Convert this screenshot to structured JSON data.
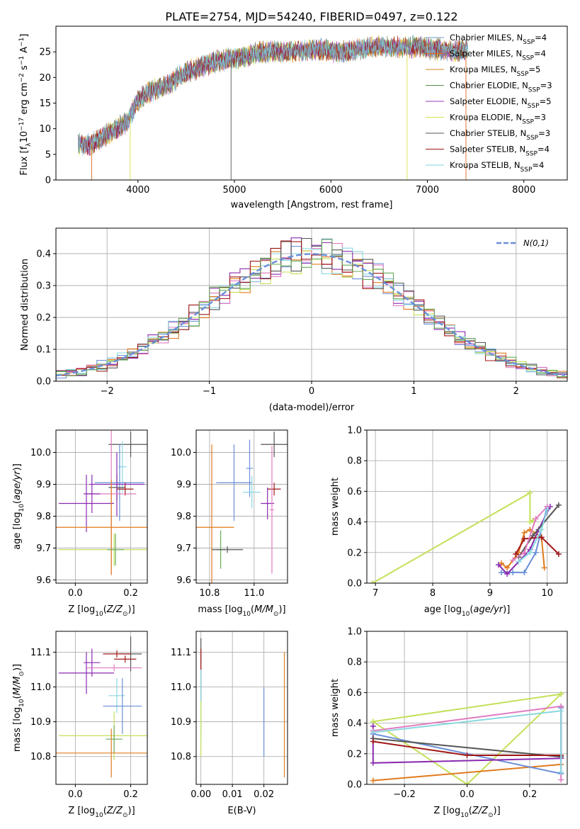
{
  "figure": {
    "title": "PLATE=2754, MJD=54240, FIBERID=0497, z=0.122"
  },
  "colors": {
    "chabrier_miles": "#6b9ac4",
    "salpeter_miles": "#e0651c",
    "kroupa_miles": "#d58b1c",
    "chabrier_elodie": "#5a8a4a",
    "salpeter_elodie": "#9a3ab8",
    "kroupa_elodie": "#d8e04a",
    "chabrier_stelib": "#555555",
    "salpeter_stelib": "#a01818",
    "kroupa_stelib": "#7fd3dd",
    "blue": "#6a8fd8",
    "orange": "#e07b1e",
    "purple": "#8a2ab0",
    "lime": "#c3e05a",
    "pink": "#e07cc0",
    "cyan": "#8ad8e0",
    "gray": "#555555",
    "red": "#a01818",
    "green": "#6aaa5a"
  },
  "chart_data": [
    {
      "id": "spectrum",
      "type": "line",
      "xlabel": "wavelength [Angstrom, rest frame]",
      "ylabel": "Flux [f_λ 10^-17 erg cm^-2 s^-1 A^-1]",
      "xlim": [
        3150,
        8450
      ],
      "ylim": [
        0,
        30
      ],
      "xticks": [
        4000,
        5000,
        6000,
        7000,
        8000
      ],
      "yticks": [
        0,
        5,
        10,
        15,
        20,
        25
      ],
      "grid": false,
      "legend_position": "top-right",
      "envelope": {
        "x": [
          3380,
          3500,
          3700,
          3900,
          4000,
          4100,
          4300,
          4500,
          4700,
          4900,
          5100,
          5300,
          5500,
          5700,
          5900,
          6100,
          6300,
          6500,
          6700,
          6900,
          7100,
          7300,
          7420
        ],
        "y": [
          7.0,
          6.8,
          9.0,
          11.5,
          15.5,
          17.0,
          18.5,
          21.0,
          22.5,
          23.5,
          24.0,
          25.0,
          25.0,
          25.2,
          25.5,
          25.0,
          25.5,
          26.2,
          25.8,
          26.0,
          25.5,
          25.0,
          25.5
        ]
      },
      "legend": [
        {
          "label": "Chabrier MILES, N",
          "sub": "SSP",
          "suffix": "=4",
          "color_key": "chabrier_miles"
        },
        {
          "label": "Salpeter MILES, N",
          "sub": "SSP",
          "suffix": "=4",
          "color_key": "salpeter_miles"
        },
        {
          "label": "Kroupa MILES, N",
          "sub": "SSP",
          "suffix": "=5",
          "color_key": "kroupa_miles"
        },
        {
          "label": "Chabrier ELODIE, N",
          "sub": "SSP",
          "suffix": "=3",
          "color_key": "chabrier_elodie"
        },
        {
          "label": "Salpeter ELODIE, N",
          "sub": "SSP",
          "suffix": "=5",
          "color_key": "salpeter_elodie"
        },
        {
          "label": "Kroupa ELODIE, N",
          "sub": "SSP",
          "suffix": "=3",
          "color_key": "kroupa_elodie"
        },
        {
          "label": "Chabrier STELIB, N",
          "sub": "SSP",
          "suffix": "=3",
          "color_key": "chabrier_stelib"
        },
        {
          "label": "Salpeter STELIB, N",
          "sub": "SSP",
          "suffix": "=4",
          "color_key": "salpeter_stelib"
        },
        {
          "label": "Kroupa STELIB, N",
          "sub": "SSP",
          "suffix": "=4",
          "color_key": "kroupa_stelib"
        }
      ],
      "drop_lines": [
        {
          "x": 3520,
          "color_key": "salpeter_miles"
        },
        {
          "x": 3920,
          "color_key": "kroupa_elodie"
        },
        {
          "x": 4965,
          "color_key": "chabrier_stelib"
        },
        {
          "x": 6790,
          "color_key": "kroupa_elodie"
        },
        {
          "x": 7400,
          "color_key": "salpeter_miles"
        }
      ]
    },
    {
      "id": "residuals",
      "type": "histogram",
      "xlabel": "(data-model)/error",
      "ylabel": "Normed distribution",
      "xlim": [
        -2.5,
        2.5
      ],
      "ylim": [
        0,
        0.48
      ],
      "xticks": [
        -2,
        -1,
        0,
        1,
        2
      ],
      "yticks": [
        0.0,
        0.1,
        0.2,
        0.3,
        0.4
      ],
      "grid": true,
      "bin_width": 0.1,
      "legend": [
        {
          "label": "N(0,1)",
          "color_key": "blue",
          "style": "dashed"
        }
      ],
      "series_color_keys": [
        "blue",
        "orange",
        "purple",
        "lime",
        "pink",
        "cyan",
        "gray",
        "red",
        "green"
      ]
    },
    {
      "id": "age_vs_Z",
      "type": "errorbar",
      "xlabel": "Z [log10(Z/Z☉)]",
      "ylabel": "age [log10(age/yr)]",
      "xlim": [
        -0.07,
        0.26
      ],
      "ylim": [
        9.59,
        10.07
      ],
      "xticks": [
        0.0,
        0.2
      ],
      "yticks": [
        9.6,
        9.7,
        9.8,
        9.9,
        10.0
      ],
      "grid": true,
      "points": [
        {
          "x": 0.2,
          "y": 10.025,
          "xerr": 0.08,
          "yerr": 0.04,
          "color_key": "gray"
        },
        {
          "x": 0.17,
          "y": 9.955,
          "xerr": 0.015,
          "yerr": 0.08,
          "color_key": "cyan"
        },
        {
          "x": 0.16,
          "y": 9.905,
          "xerr": 0.09,
          "yerr": 0.12,
          "color_key": "blue"
        },
        {
          "x": 0.15,
          "y": 9.89,
          "xerr": 0.03,
          "yerr": 0.04,
          "color_key": "gray"
        },
        {
          "x": 0.18,
          "y": 9.885,
          "xerr": 0.03,
          "yerr": 0.02,
          "color_key": "red"
        },
        {
          "x": 0.15,
          "y": 9.9,
          "xerr": 0.1,
          "yerr": 0.1,
          "color_key": "purple"
        },
        {
          "x": 0.13,
          "y": 9.87,
          "xerr": 0.09,
          "yerr": 0.25,
          "color_key": "pink"
        },
        {
          "x": 0.06,
          "y": 9.87,
          "xerr": 0.03,
          "yerr": 0.06,
          "color_key": "purple"
        },
        {
          "x": 0.04,
          "y": 9.84,
          "xerr": 0.1,
          "yerr": 0.09,
          "color_key": "purple"
        },
        {
          "x": 0.13,
          "y": 9.765,
          "xerr": 0.2,
          "yerr": 0.15,
          "color_key": "orange"
        },
        {
          "x": 0.14,
          "y": 9.695,
          "xerr": 0.2,
          "yerr": 0.05,
          "color_key": "lime"
        },
        {
          "x": 0.145,
          "y": 9.695,
          "xerr": 0.03,
          "yerr": 0.05,
          "color_key": "green"
        }
      ]
    },
    {
      "id": "age_vs_mass",
      "type": "errorbar",
      "xlabel": "mass [log10(M/M☉)]",
      "ylabel": "",
      "xlim": [
        10.74,
        11.15
      ],
      "ylim": [
        9.59,
        10.07
      ],
      "xticks": [
        10.8,
        11.0
      ],
      "yticks": [
        9.6,
        9.7,
        9.8,
        9.9,
        10.0
      ],
      "grid": true,
      "points": [
        {
          "x": 11.09,
          "y": 10.025,
          "xerr": 0.06,
          "yerr": 0.04,
          "color_key": "gray"
        },
        {
          "x": 10.98,
          "y": 9.95,
          "xerr": 0.015,
          "yerr": 0.09,
          "color_key": "blue"
        },
        {
          "x": 10.91,
          "y": 9.905,
          "xerr": 0.08,
          "yerr": 0.12,
          "color_key": "blue"
        },
        {
          "x": 11.09,
          "y": 9.885,
          "xerr": 0.03,
          "yerr": 0.02,
          "color_key": "red"
        },
        {
          "x": 11.06,
          "y": 9.84,
          "xerr": 0.03,
          "yerr": 0.05,
          "color_key": "purple"
        },
        {
          "x": 10.99,
          "y": 9.875,
          "xerr": 0.04,
          "yerr": 0.05,
          "color_key": "cyan"
        },
        {
          "x": 11.08,
          "y": 9.82,
          "xerr": 0.01,
          "yerr": 0.2,
          "color_key": "pink"
        },
        {
          "x": 10.81,
          "y": 9.765,
          "xerr": 0.1,
          "yerr": 0.26,
          "color_key": "orange"
        },
        {
          "x": 10.85,
          "y": 9.695,
          "xerr": 0.02,
          "yerr": 0.06,
          "color_key": "green"
        },
        {
          "x": 10.88,
          "y": 9.695,
          "xerr": 0.07,
          "yerr": 0.01,
          "color_key": "gray"
        }
      ]
    },
    {
      "id": "mass_weight_vs_age",
      "type": "line",
      "xlabel": "age [log10(age/yr)]",
      "ylabel": "mass weight",
      "xlim": [
        6.85,
        10.35
      ],
      "ylim": [
        0,
        1.0
      ],
      "xticks": [
        7,
        8,
        9,
        10
      ],
      "yticks": [
        0.0,
        0.2,
        0.4,
        0.6,
        0.8,
        1.0
      ],
      "grid": true,
      "series": [
        {
          "color_key": "lime",
          "x": [
            6.95,
            9.7,
            9.7,
            9.75
          ],
          "y": [
            0.0,
            0.59,
            0.4,
            0.41
          ]
        },
        {
          "color_key": "orange",
          "x": [
            9.2,
            9.3,
            9.5,
            9.6,
            9.7,
            9.9,
            9.95
          ],
          "y": [
            0.13,
            0.1,
            0.2,
            0.33,
            0.35,
            0.3,
            0.1
          ]
        },
        {
          "color_key": "blue",
          "x": [
            9.2,
            9.4,
            9.6,
            9.8,
            10.0
          ],
          "y": [
            0.07,
            0.07,
            0.07,
            0.2,
            0.5
          ]
        },
        {
          "color_key": "purple",
          "x": [
            9.15,
            9.3,
            9.5,
            9.7,
            9.85,
            10.05
          ],
          "y": [
            0.12,
            0.06,
            0.14,
            0.22,
            0.35,
            0.5
          ]
        },
        {
          "color_key": "gray",
          "x": [
            9.5,
            9.75,
            10.2
          ],
          "y": [
            0.17,
            0.31,
            0.51
          ]
        },
        {
          "color_key": "red",
          "x": [
            9.45,
            9.6,
            9.9,
            10.2
          ],
          "y": [
            0.19,
            0.29,
            0.3,
            0.19
          ]
        },
        {
          "color_key": "pink",
          "x": [
            9.4,
            9.6,
            9.8,
            10.0
          ],
          "y": [
            0.15,
            0.2,
            0.42,
            0.5
          ]
        },
        {
          "color_key": "cyan",
          "x": [
            9.5,
            9.7,
            9.9,
            10.0
          ],
          "y": [
            0.14,
            0.2,
            0.35,
            0.48
          ]
        }
      ]
    },
    {
      "id": "mass_vs_Z",
      "type": "errorbar",
      "xlabel": "Z [log10(Z/Z☉)]",
      "ylabel": "mass [log10(M/M☉)]",
      "xlim": [
        -0.07,
        0.26
      ],
      "ylim": [
        10.72,
        11.16
      ],
      "xticks": [
        0.0,
        0.2
      ],
      "yticks": [
        10.8,
        10.9,
        11.0,
        11.1
      ],
      "grid": true,
      "points": [
        {
          "x": 0.2,
          "y": 11.095,
          "xerr": 0.04,
          "yerr": 0.05,
          "color_key": "gray"
        },
        {
          "x": 0.15,
          "y": 11.095,
          "xerr": 0.05,
          "yerr": 0.01,
          "color_key": "red"
        },
        {
          "x": 0.06,
          "y": 11.07,
          "xerr": 0.03,
          "yerr": 0.04,
          "color_key": "purple"
        },
        {
          "x": 0.14,
          "y": 11.055,
          "xerr": 0.1,
          "yerr": 0.01,
          "color_key": "pink"
        },
        {
          "x": 0.18,
          "y": 11.08,
          "xerr": 0.04,
          "yerr": 0.01,
          "color_key": "red"
        },
        {
          "x": 0.04,
          "y": 11.04,
          "xerr": 0.1,
          "yerr": 0.06,
          "color_key": "purple"
        },
        {
          "x": 0.15,
          "y": 10.975,
          "xerr": 0.03,
          "yerr": 0.05,
          "color_key": "cyan"
        },
        {
          "x": 0.17,
          "y": 10.945,
          "xerr": 0.07,
          "yerr": 0.08,
          "color_key": "blue"
        },
        {
          "x": 0.14,
          "y": 10.86,
          "xerr": 0.2,
          "yerr": 0.07,
          "color_key": "lime"
        },
        {
          "x": 0.14,
          "y": 10.85,
          "xerr": 0.03,
          "yerr": 0.04,
          "color_key": "green"
        },
        {
          "x": 0.13,
          "y": 10.81,
          "xerr": 0.2,
          "yerr": 0.07,
          "color_key": "orange"
        }
      ]
    },
    {
      "id": "mass_vs_EBV",
      "type": "errorbar",
      "xlabel": "E(B-V)",
      "ylabel": "",
      "xlim": [
        -0.0015,
        0.0275
      ],
      "ylim": [
        10.72,
        11.16
      ],
      "xticks": [
        0.0,
        0.01,
        0.02
      ],
      "yticks": [
        10.8,
        10.9,
        11.0,
        11.1
      ],
      "grid": true,
      "points": [
        {
          "x": 0.0,
          "y": 11.05,
          "xerr": 0,
          "yerr": 0.09,
          "color_key": "gray"
        },
        {
          "x": 0.0,
          "y": 11.08,
          "xerr": 0,
          "yerr": 0.03,
          "color_key": "red"
        },
        {
          "x": 0.0,
          "y": 10.95,
          "xerr": 0,
          "yerr": 0.1,
          "color_key": "cyan"
        },
        {
          "x": 0.0,
          "y": 10.88,
          "xerr": 0,
          "yerr": 0.08,
          "color_key": "lime"
        },
        {
          "x": 0.02,
          "y": 10.9,
          "xerr": 0,
          "yerr": 0.1,
          "color_key": "blue"
        },
        {
          "x": 0.0265,
          "y": 10.92,
          "xerr": 0,
          "yerr": 0.18,
          "color_key": "orange"
        }
      ]
    },
    {
      "id": "mass_weight_vs_Z",
      "type": "line",
      "xlabel": "Z [log10(Z/Z☉)]",
      "ylabel": "mass weight",
      "xlim": [
        -0.32,
        0.32
      ],
      "ylim": [
        0,
        1.0
      ],
      "xticks": [
        -0.2,
        0.0,
        0.2
      ],
      "yticks": [
        0.0,
        0.2,
        0.4,
        0.6,
        0.8,
        1.0
      ],
      "grid": true,
      "series": [
        {
          "color_key": "lime",
          "x": [
            -0.3,
            0.0,
            0.3,
            0.3,
            -0.3
          ],
          "y": [
            0.41,
            0.0,
            0.59,
            0.59,
            0.41
          ]
        },
        {
          "color_key": "orange",
          "x": [
            -0.3,
            0.3
          ],
          "y": [
            0.025,
            0.13
          ]
        },
        {
          "color_key": "blue",
          "x": [
            -0.3,
            0.3,
            0.3
          ],
          "y": [
            0.33,
            0.07,
            0.5
          ]
        },
        {
          "color_key": "purple",
          "x": [
            -0.3,
            -0.3,
            0.3
          ],
          "y": [
            0.38,
            0.14,
            0.17
          ]
        },
        {
          "color_key": "gray",
          "x": [
            -0.3,
            0.3,
            0.3
          ],
          "y": [
            0.3,
            0.18,
            0.51
          ]
        },
        {
          "color_key": "red",
          "x": [
            -0.3,
            0.0,
            0.3
          ],
          "y": [
            0.28,
            0.19,
            0.19
          ]
        },
        {
          "color_key": "pink",
          "x": [
            -0.3,
            0.3,
            0.3
          ],
          "y": [
            0.35,
            0.51,
            0.03
          ]
        },
        {
          "color_key": "cyan",
          "x": [
            -0.3,
            0.3,
            0.3
          ],
          "y": [
            0.34,
            0.48,
            0.08
          ]
        }
      ]
    }
  ]
}
